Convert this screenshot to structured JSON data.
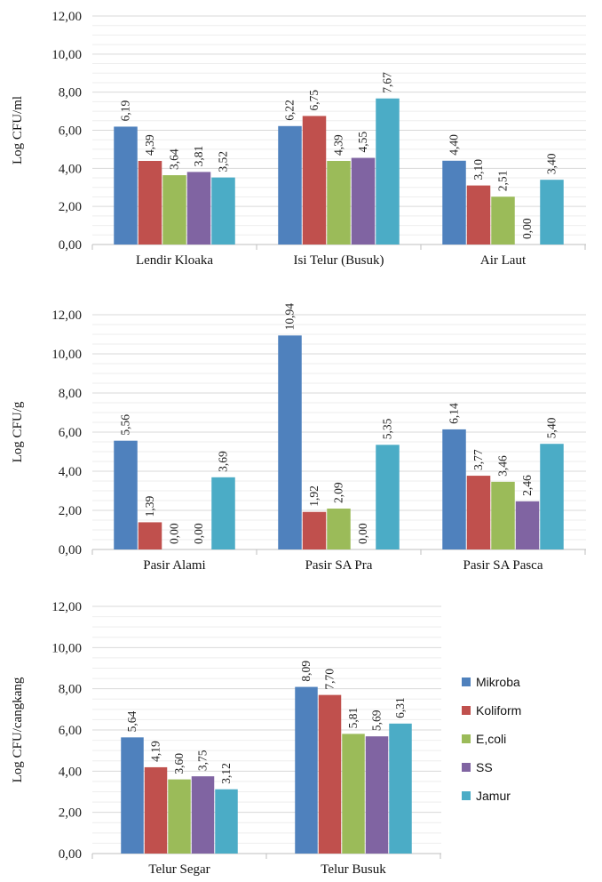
{
  "chart_data": [
    {
      "type": "bar",
      "title": "",
      "ylabel": "Log CFU/ml",
      "xlabel": "",
      "ylim": [
        0,
        12
      ],
      "yticks": [
        "0,00",
        "2,00",
        "4,00",
        "6,00",
        "8,00",
        "10,00",
        "12,00"
      ],
      "grid": true,
      "categories": [
        "Lendir Kloaka",
        "Isi Telur (Busuk)",
        "Air Laut"
      ],
      "series": [
        {
          "name": "Mikroba",
          "color": "#4f81bd",
          "values": [
            6.19,
            6.22,
            4.4
          ],
          "labels": [
            "6,19",
            "6,22",
            "4,40"
          ]
        },
        {
          "name": "Koliform",
          "color": "#c0504d",
          "values": [
            4.39,
            6.75,
            3.1
          ],
          "labels": [
            "4,39",
            "6,75",
            "3,10"
          ]
        },
        {
          "name": "E,coli",
          "color": "#9bbb59",
          "values": [
            3.64,
            4.39,
            2.51
          ],
          "labels": [
            "3,64",
            "4,39",
            "2,51"
          ]
        },
        {
          "name": "SS",
          "color": "#8064a2",
          "values": [
            3.81,
            4.55,
            0.0
          ],
          "labels": [
            "3,81",
            "4,55",
            "0,00"
          ]
        },
        {
          "name": "Jamur",
          "color": "#4bacc6",
          "values": [
            3.52,
            7.67,
            3.4
          ],
          "labels": [
            "3,52",
            "7,67",
            "3,40"
          ]
        }
      ]
    },
    {
      "type": "bar",
      "title": "",
      "ylabel": "Log CFU/g",
      "xlabel": "",
      "ylim": [
        0,
        12
      ],
      "yticks": [
        "0,00",
        "2,00",
        "4,00",
        "6,00",
        "8,00",
        "10,00",
        "12,00"
      ],
      "grid": true,
      "categories": [
        "Pasir Alami",
        "Pasir SA Pra",
        "Pasir SA Pasca"
      ],
      "series": [
        {
          "name": "Mikroba",
          "color": "#4f81bd",
          "values": [
            5.56,
            10.94,
            6.14
          ],
          "labels": [
            "5,56",
            "10,94",
            "6,14"
          ]
        },
        {
          "name": "Koliform",
          "color": "#c0504d",
          "values": [
            1.39,
            1.92,
            3.77
          ],
          "labels": [
            "1,39",
            "1,92",
            "3,77"
          ]
        },
        {
          "name": "E,coli",
          "color": "#9bbb59",
          "values": [
            0.0,
            2.09,
            3.46
          ],
          "labels": [
            "0,00",
            "2,09",
            "3,46"
          ]
        },
        {
          "name": "SS",
          "color": "#8064a2",
          "values": [
            0.0,
            0.0,
            2.46
          ],
          "labels": [
            "0,00",
            "0,00",
            "2,46"
          ]
        },
        {
          "name": "Jamur",
          "color": "#4bacc6",
          "values": [
            3.69,
            5.35,
            5.4
          ],
          "labels": [
            "3,69",
            "5,35",
            "5,40"
          ]
        }
      ]
    },
    {
      "type": "bar",
      "title": "",
      "ylabel": "Log CFU/cangkang",
      "xlabel": "",
      "ylim": [
        0,
        12
      ],
      "yticks": [
        "0,00",
        "2,00",
        "4,00",
        "6,00",
        "8,00",
        "10,00",
        "12,00"
      ],
      "grid": true,
      "legend": "right",
      "categories": [
        "Telur Segar",
        "Telur Busuk"
      ],
      "series": [
        {
          "name": "Mikroba",
          "color": "#4f81bd",
          "values": [
            5.64,
            8.09
          ],
          "labels": [
            "5,64",
            "8,09"
          ]
        },
        {
          "name": "Koliform",
          "color": "#c0504d",
          "values": [
            4.19,
            7.7
          ],
          "labels": [
            "4,19",
            "7,70"
          ]
        },
        {
          "name": "E,coli",
          "color": "#9bbb59",
          "values": [
            3.6,
            5.81
          ],
          "labels": [
            "3,60",
            "5,81"
          ]
        },
        {
          "name": "SS",
          "color": "#8064a2",
          "values": [
            3.75,
            5.69
          ],
          "labels": [
            "3,75",
            "5,69"
          ]
        },
        {
          "name": "Jamur",
          "color": "#4bacc6",
          "values": [
            3.12,
            6.31
          ],
          "labels": [
            "3,12",
            "6,31"
          ]
        }
      ]
    }
  ]
}
